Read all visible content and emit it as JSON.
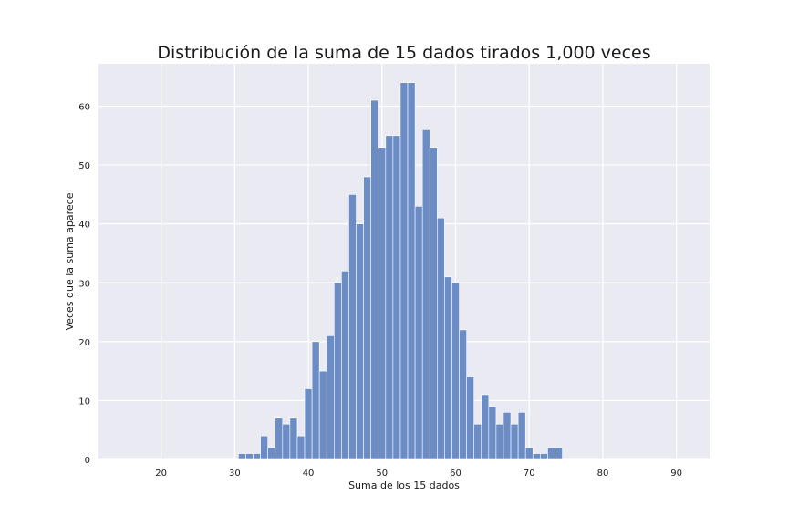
{
  "chart_data": {
    "type": "bar",
    "title": "Distribución de la suma de 15 dados tirados 1,000 veces",
    "xlabel": "Suma de los 15 dados",
    "ylabel": "Veces que la suma aparece",
    "xlim": [
      11.5,
      94.5
    ],
    "ylim": [
      0,
      67.2
    ],
    "xticks": [
      20,
      30,
      40,
      50,
      60,
      70,
      80,
      90
    ],
    "yticks": [
      0,
      10,
      20,
      30,
      40,
      50,
      60
    ],
    "grid": true,
    "bin_width": 1,
    "colors": {
      "background": "#eaeaf2",
      "grid": "#ffffff",
      "bar": "#6c8cc5",
      "bar_edge": "#ffffff"
    },
    "x": [
      31,
      32,
      33,
      34,
      35,
      36,
      37,
      38,
      39,
      40,
      41,
      42,
      43,
      44,
      45,
      46,
      47,
      48,
      49,
      50,
      51,
      52,
      53,
      54,
      55,
      56,
      57,
      58,
      59,
      60,
      61,
      62,
      63,
      64,
      65,
      66,
      67,
      68,
      69,
      70,
      71,
      72,
      73,
      74
    ],
    "values": [
      1,
      1,
      1,
      4,
      2,
      7,
      6,
      7,
      4,
      12,
      20,
      15,
      21,
      30,
      32,
      45,
      40,
      48,
      61,
      53,
      55,
      55,
      64,
      64,
      43,
      56,
      53,
      41,
      31,
      30,
      22,
      14,
      6,
      11,
      9,
      6,
      8,
      6,
      8,
      2,
      1,
      1,
      2,
      2
    ]
  }
}
